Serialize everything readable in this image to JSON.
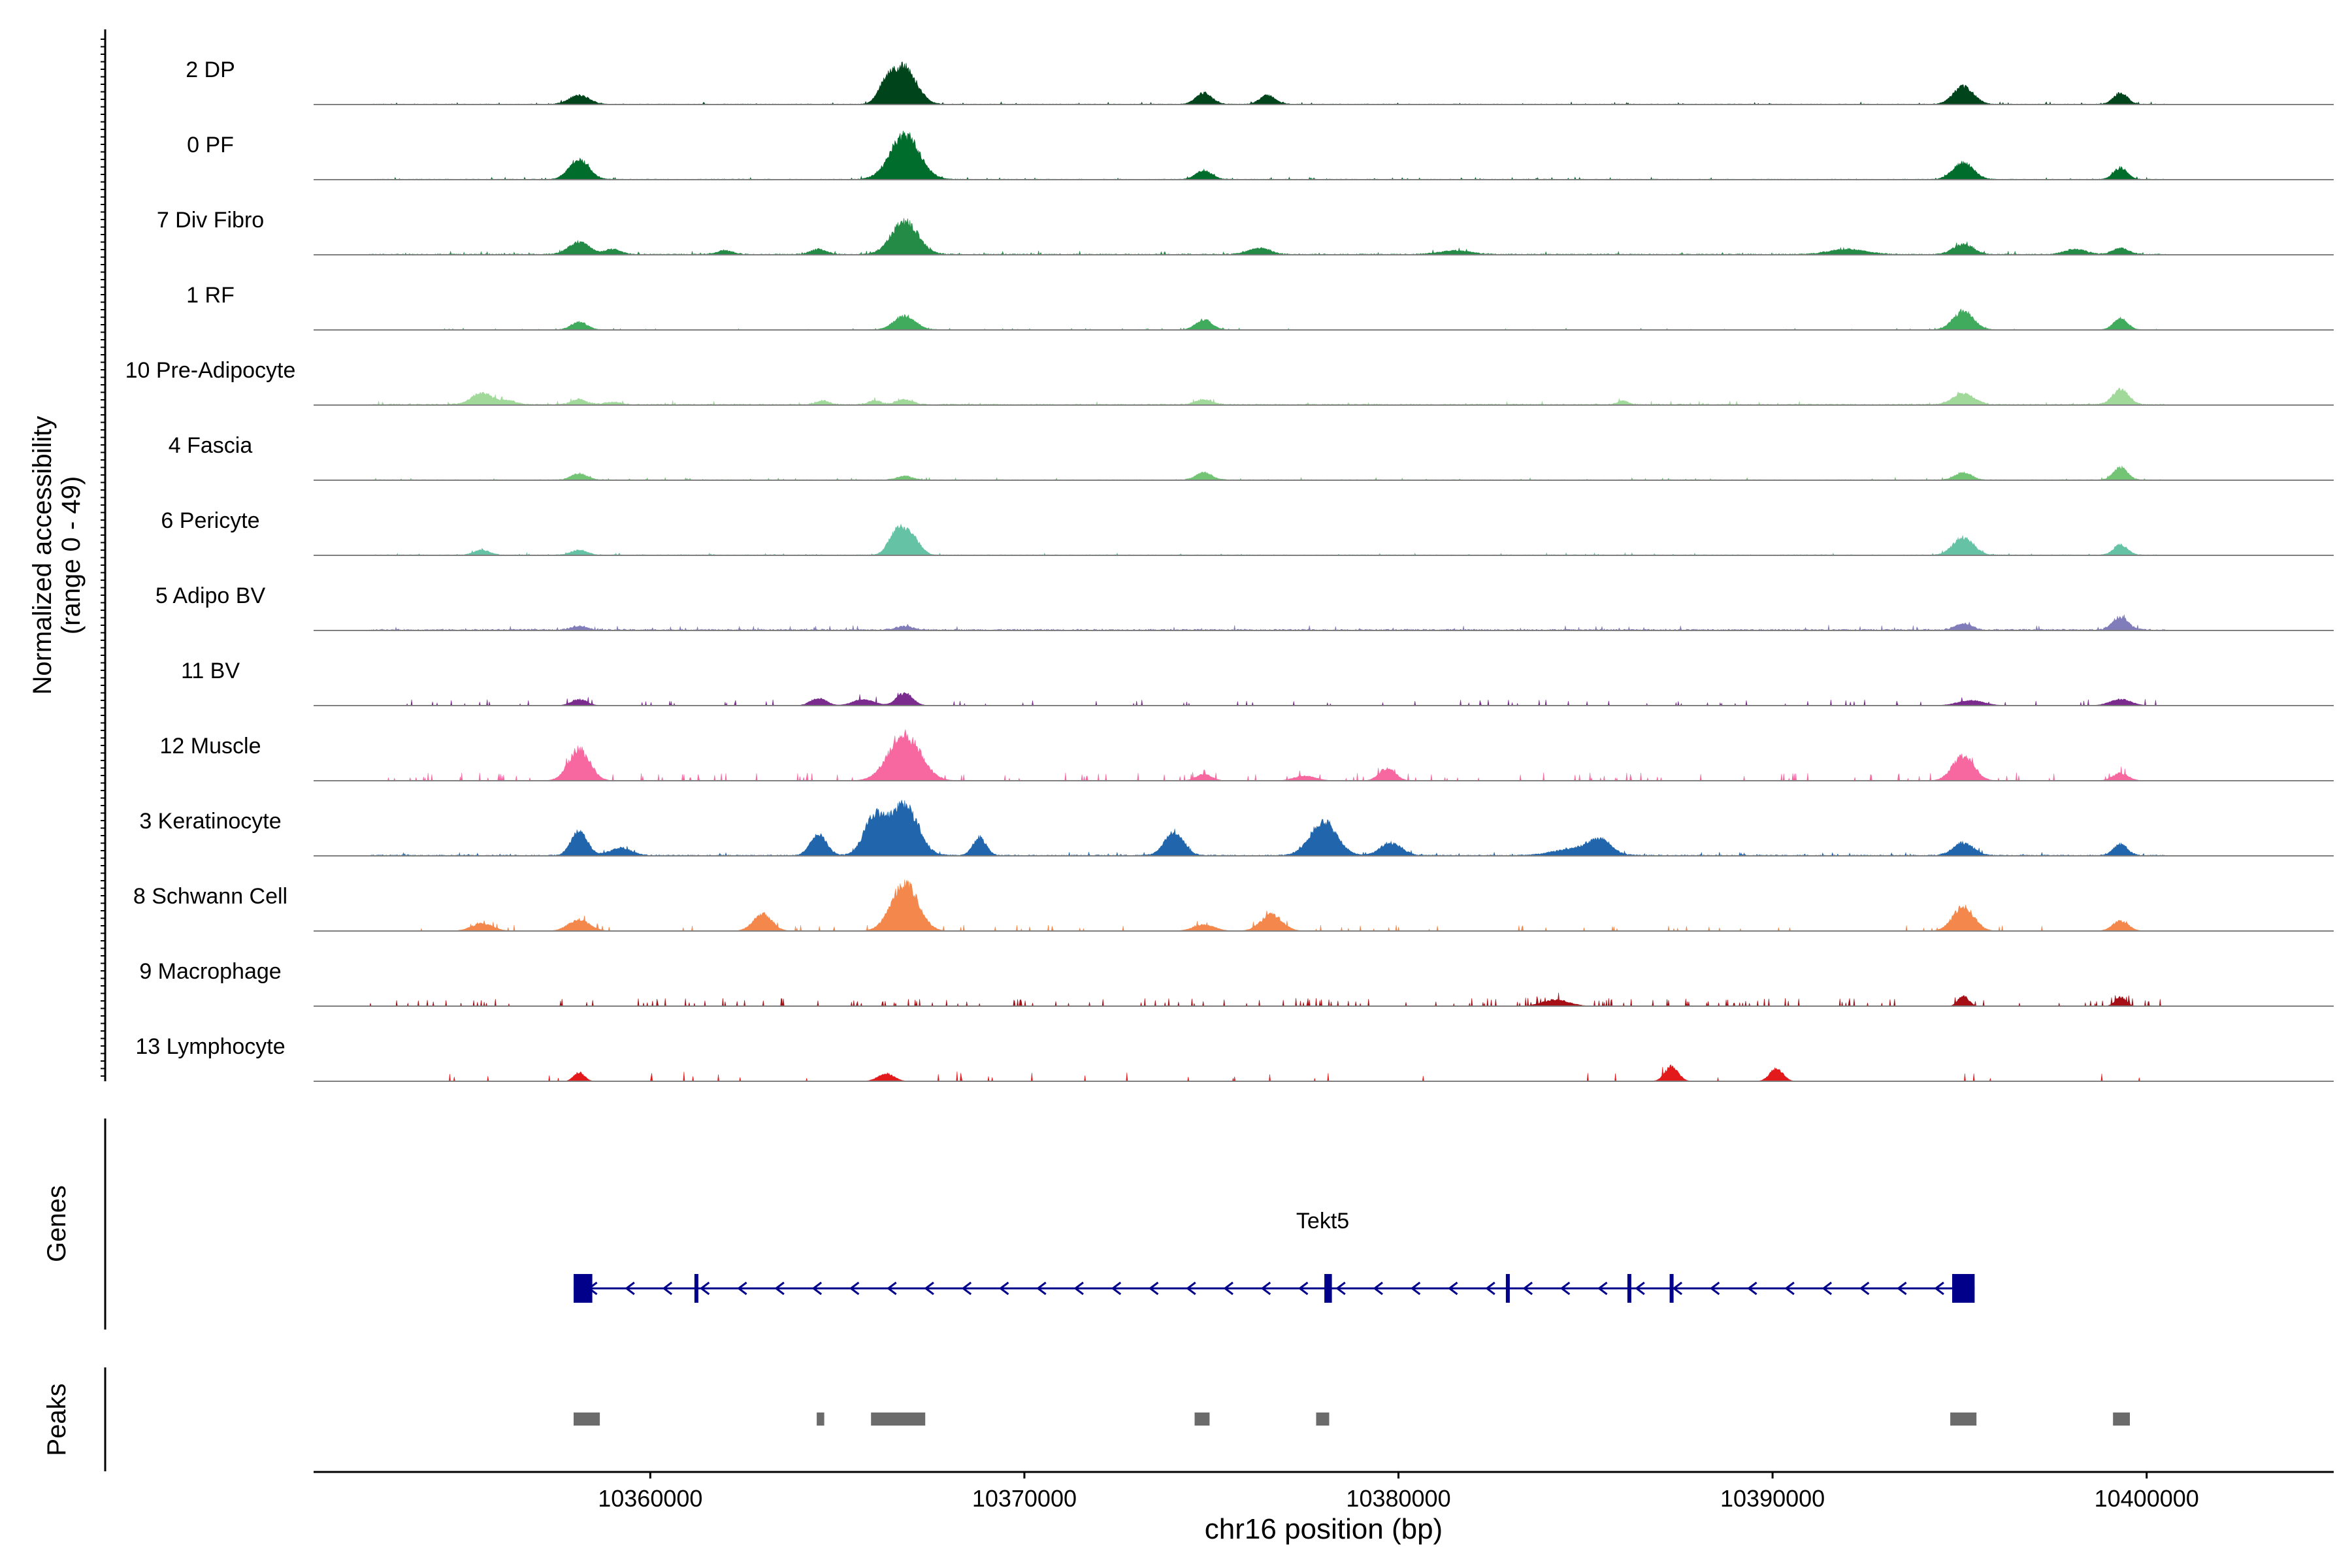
{
  "chart_data": {
    "type": "area",
    "coverage_ylabel": "Normalized accessibility",
    "coverage_range_label": "(range 0 - 49)",
    "y_range": [
      0,
      49
    ],
    "xlabel": "chr16 position (bp)",
    "xlim": [
      10351000,
      10405000
    ],
    "x_ticks": [
      10360000,
      10370000,
      10380000,
      10390000,
      10400000
    ],
    "x_tick_labels": [
      "10360000",
      "10370000",
      "10380000",
      "10390000",
      "10400000"
    ],
    "genes_label": "Genes",
    "peaks_label": "Peaks",
    "tracks": [
      {
        "name": "2 DP",
        "color": "#00441b",
        "noise": 0.6,
        "sporadic": false,
        "peaks": [
          [
            10358100,
            7,
            380
          ],
          [
            10366300,
            14,
            300
          ],
          [
            10366800,
            29,
            450
          ],
          [
            10374800,
            9,
            300
          ],
          [
            10376500,
            7,
            300
          ],
          [
            10395100,
            14,
            380
          ],
          [
            10399300,
            9,
            260
          ]
        ]
      },
      {
        "name": "0 PF",
        "color": "#006d2c",
        "noise": 0.6,
        "sporadic": false,
        "peaks": [
          [
            10358100,
            15,
            380
          ],
          [
            10366800,
            35,
            550
          ],
          [
            10374800,
            7,
            300
          ],
          [
            10395100,
            13,
            380
          ],
          [
            10399300,
            9,
            260
          ]
        ]
      },
      {
        "name": "7 Div Fibro",
        "color": "#238b45",
        "noise": 0.9,
        "sporadic": false,
        "peaks": [
          [
            10358100,
            10,
            380
          ],
          [
            10359000,
            4,
            300
          ],
          [
            10362000,
            3,
            300
          ],
          [
            10364500,
            4,
            300
          ],
          [
            10366800,
            26,
            500
          ],
          [
            10376300,
            5,
            400
          ],
          [
            10381500,
            3,
            600
          ],
          [
            10392000,
            4,
            700
          ],
          [
            10395100,
            8,
            380
          ],
          [
            10398100,
            4,
            400
          ],
          [
            10399300,
            5,
            300
          ]
        ]
      },
      {
        "name": "1 RF",
        "color": "#41ab5d",
        "noise": 0.4,
        "sporadic": false,
        "peaks": [
          [
            10358100,
            6,
            300
          ],
          [
            10366800,
            11,
            400
          ],
          [
            10374800,
            8,
            300
          ],
          [
            10395100,
            15,
            380
          ],
          [
            10399300,
            9,
            260
          ]
        ]
      },
      {
        "name": "10 Pre-Adipocyte",
        "color": "#a1d99b",
        "noise": 1.0,
        "sporadic": false,
        "peaks": [
          [
            10355500,
            9,
            400
          ],
          [
            10356200,
            3,
            300
          ],
          [
            10358100,
            4,
            300
          ],
          [
            10359000,
            2,
            300
          ],
          [
            10364600,
            3,
            250
          ],
          [
            10366000,
            3,
            250
          ],
          [
            10366800,
            4,
            300
          ],
          [
            10374800,
            4,
            300
          ],
          [
            10386000,
            3,
            200
          ],
          [
            10395100,
            9,
            400
          ],
          [
            10399300,
            12,
            300
          ]
        ]
      },
      {
        "name": "4 Fascia",
        "color": "#74c476",
        "noise": 0.6,
        "sporadic": false,
        "peaks": [
          [
            10358100,
            5,
            300
          ],
          [
            10366800,
            3,
            300
          ],
          [
            10374800,
            6,
            300
          ],
          [
            10395100,
            6,
            300
          ],
          [
            10399300,
            10,
            260
          ]
        ]
      },
      {
        "name": "6 Pericyte",
        "color": "#66c2a4",
        "noise": 0.6,
        "sporadic": false,
        "peaks": [
          [
            10355500,
            4,
            300
          ],
          [
            10358100,
            4,
            300
          ],
          [
            10366600,
            20,
            300
          ],
          [
            10367000,
            14,
            300
          ],
          [
            10395100,
            14,
            380
          ],
          [
            10399300,
            8,
            260
          ]
        ]
      },
      {
        "name": "5 Adipo BV",
        "color": "#807dba",
        "noise": 1.2,
        "sporadic": false,
        "peaks": [
          [
            10358100,
            3,
            300
          ],
          [
            10366800,
            3,
            300
          ],
          [
            10395100,
            5,
            300
          ],
          [
            10399300,
            10,
            300
          ]
        ]
      },
      {
        "name": "11 BV",
        "color": "#7b2a8e",
        "noise": 0,
        "sporadic": true,
        "spikes": 90,
        "spike_h": 3,
        "peaks": [
          [
            10358100,
            5,
            300
          ],
          [
            10364500,
            6,
            300
          ],
          [
            10365700,
            5,
            400
          ],
          [
            10366800,
            10,
            300
          ],
          [
            10395300,
            4,
            500
          ],
          [
            10399300,
            5,
            400
          ]
        ]
      },
      {
        "name": "12 Muscle",
        "color": "#f768a1",
        "noise": 0,
        "sporadic": true,
        "spikes": 110,
        "spike_h": 4,
        "peaks": [
          [
            10358100,
            25,
            400
          ],
          [
            10366800,
            36,
            600
          ],
          [
            10374800,
            5,
            300
          ],
          [
            10377500,
            4,
            400
          ],
          [
            10379700,
            10,
            300
          ],
          [
            10395100,
            20,
            400
          ],
          [
            10399300,
            6,
            300
          ]
        ]
      },
      {
        "name": "3 Keratinocyte",
        "color": "#2166ac",
        "noise": 0.9,
        "sporadic": false,
        "peaks": [
          [
            10358100,
            20,
            300
          ],
          [
            10359200,
            6,
            400
          ],
          [
            10364500,
            17,
            300
          ],
          [
            10366000,
            30,
            400
          ],
          [
            10366800,
            40,
            500
          ],
          [
            10368800,
            14,
            250
          ],
          [
            10374000,
            19,
            350
          ],
          [
            10378000,
            27,
            500
          ],
          [
            10379800,
            10,
            400
          ],
          [
            10384800,
            6,
            800
          ],
          [
            10385400,
            10,
            400
          ],
          [
            10395100,
            10,
            380
          ],
          [
            10399300,
            9,
            260
          ]
        ]
      },
      {
        "name": "8 Schwann Cell",
        "color": "#f4874b",
        "noise": 0,
        "sporadic": true,
        "spikes": 70,
        "spike_h": 3,
        "peaks": [
          [
            10355500,
            6,
            400
          ],
          [
            10358100,
            9,
            400
          ],
          [
            10363000,
            14,
            350
          ],
          [
            10366800,
            38,
            500
          ],
          [
            10374800,
            5,
            400
          ],
          [
            10376600,
            13,
            400
          ],
          [
            10395100,
            19,
            400
          ],
          [
            10399300,
            8,
            300
          ]
        ]
      },
      {
        "name": "9 Macrophage",
        "color": "#a50f15",
        "noise": 0,
        "sporadic": true,
        "spikes": 170,
        "spike_h": 4,
        "peaks": [
          [
            10384200,
            5,
            500
          ],
          [
            10395100,
            8,
            200
          ],
          [
            10399300,
            7,
            200
          ]
        ]
      },
      {
        "name": "13 Lymphocyte",
        "color": "#e31a1c",
        "noise": 0,
        "sporadic": true,
        "spikes": 40,
        "spike_h": 5,
        "peaks": [
          [
            10387300,
            12,
            250
          ],
          [
            10390100,
            10,
            250
          ],
          [
            10358100,
            7,
            200
          ],
          [
            10366300,
            6,
            300
          ]
        ]
      }
    ],
    "gene": {
      "name": "Tekt5",
      "color": "#00008b",
      "strand": "-",
      "start": 10357950,
      "end": 10395400,
      "exons": [
        [
          10357950,
          10358450
        ],
        [
          10361180,
          10361280
        ],
        [
          10378020,
          10378220
        ],
        [
          10382870,
          10382970
        ],
        [
          10386120,
          10386150
        ],
        [
          10387250,
          10387290
        ],
        [
          10394800,
          10395400
        ]
      ]
    },
    "peaks_color": "#6b6b6b",
    "peaks": [
      [
        10357950,
        10358650
      ],
      [
        10364450,
        10364650
      ],
      [
        10365900,
        10367350
      ],
      [
        10374550,
        10374950
      ],
      [
        10377800,
        10378150
      ],
      [
        10394750,
        10395450
      ],
      [
        10399100,
        10399550
      ]
    ]
  }
}
